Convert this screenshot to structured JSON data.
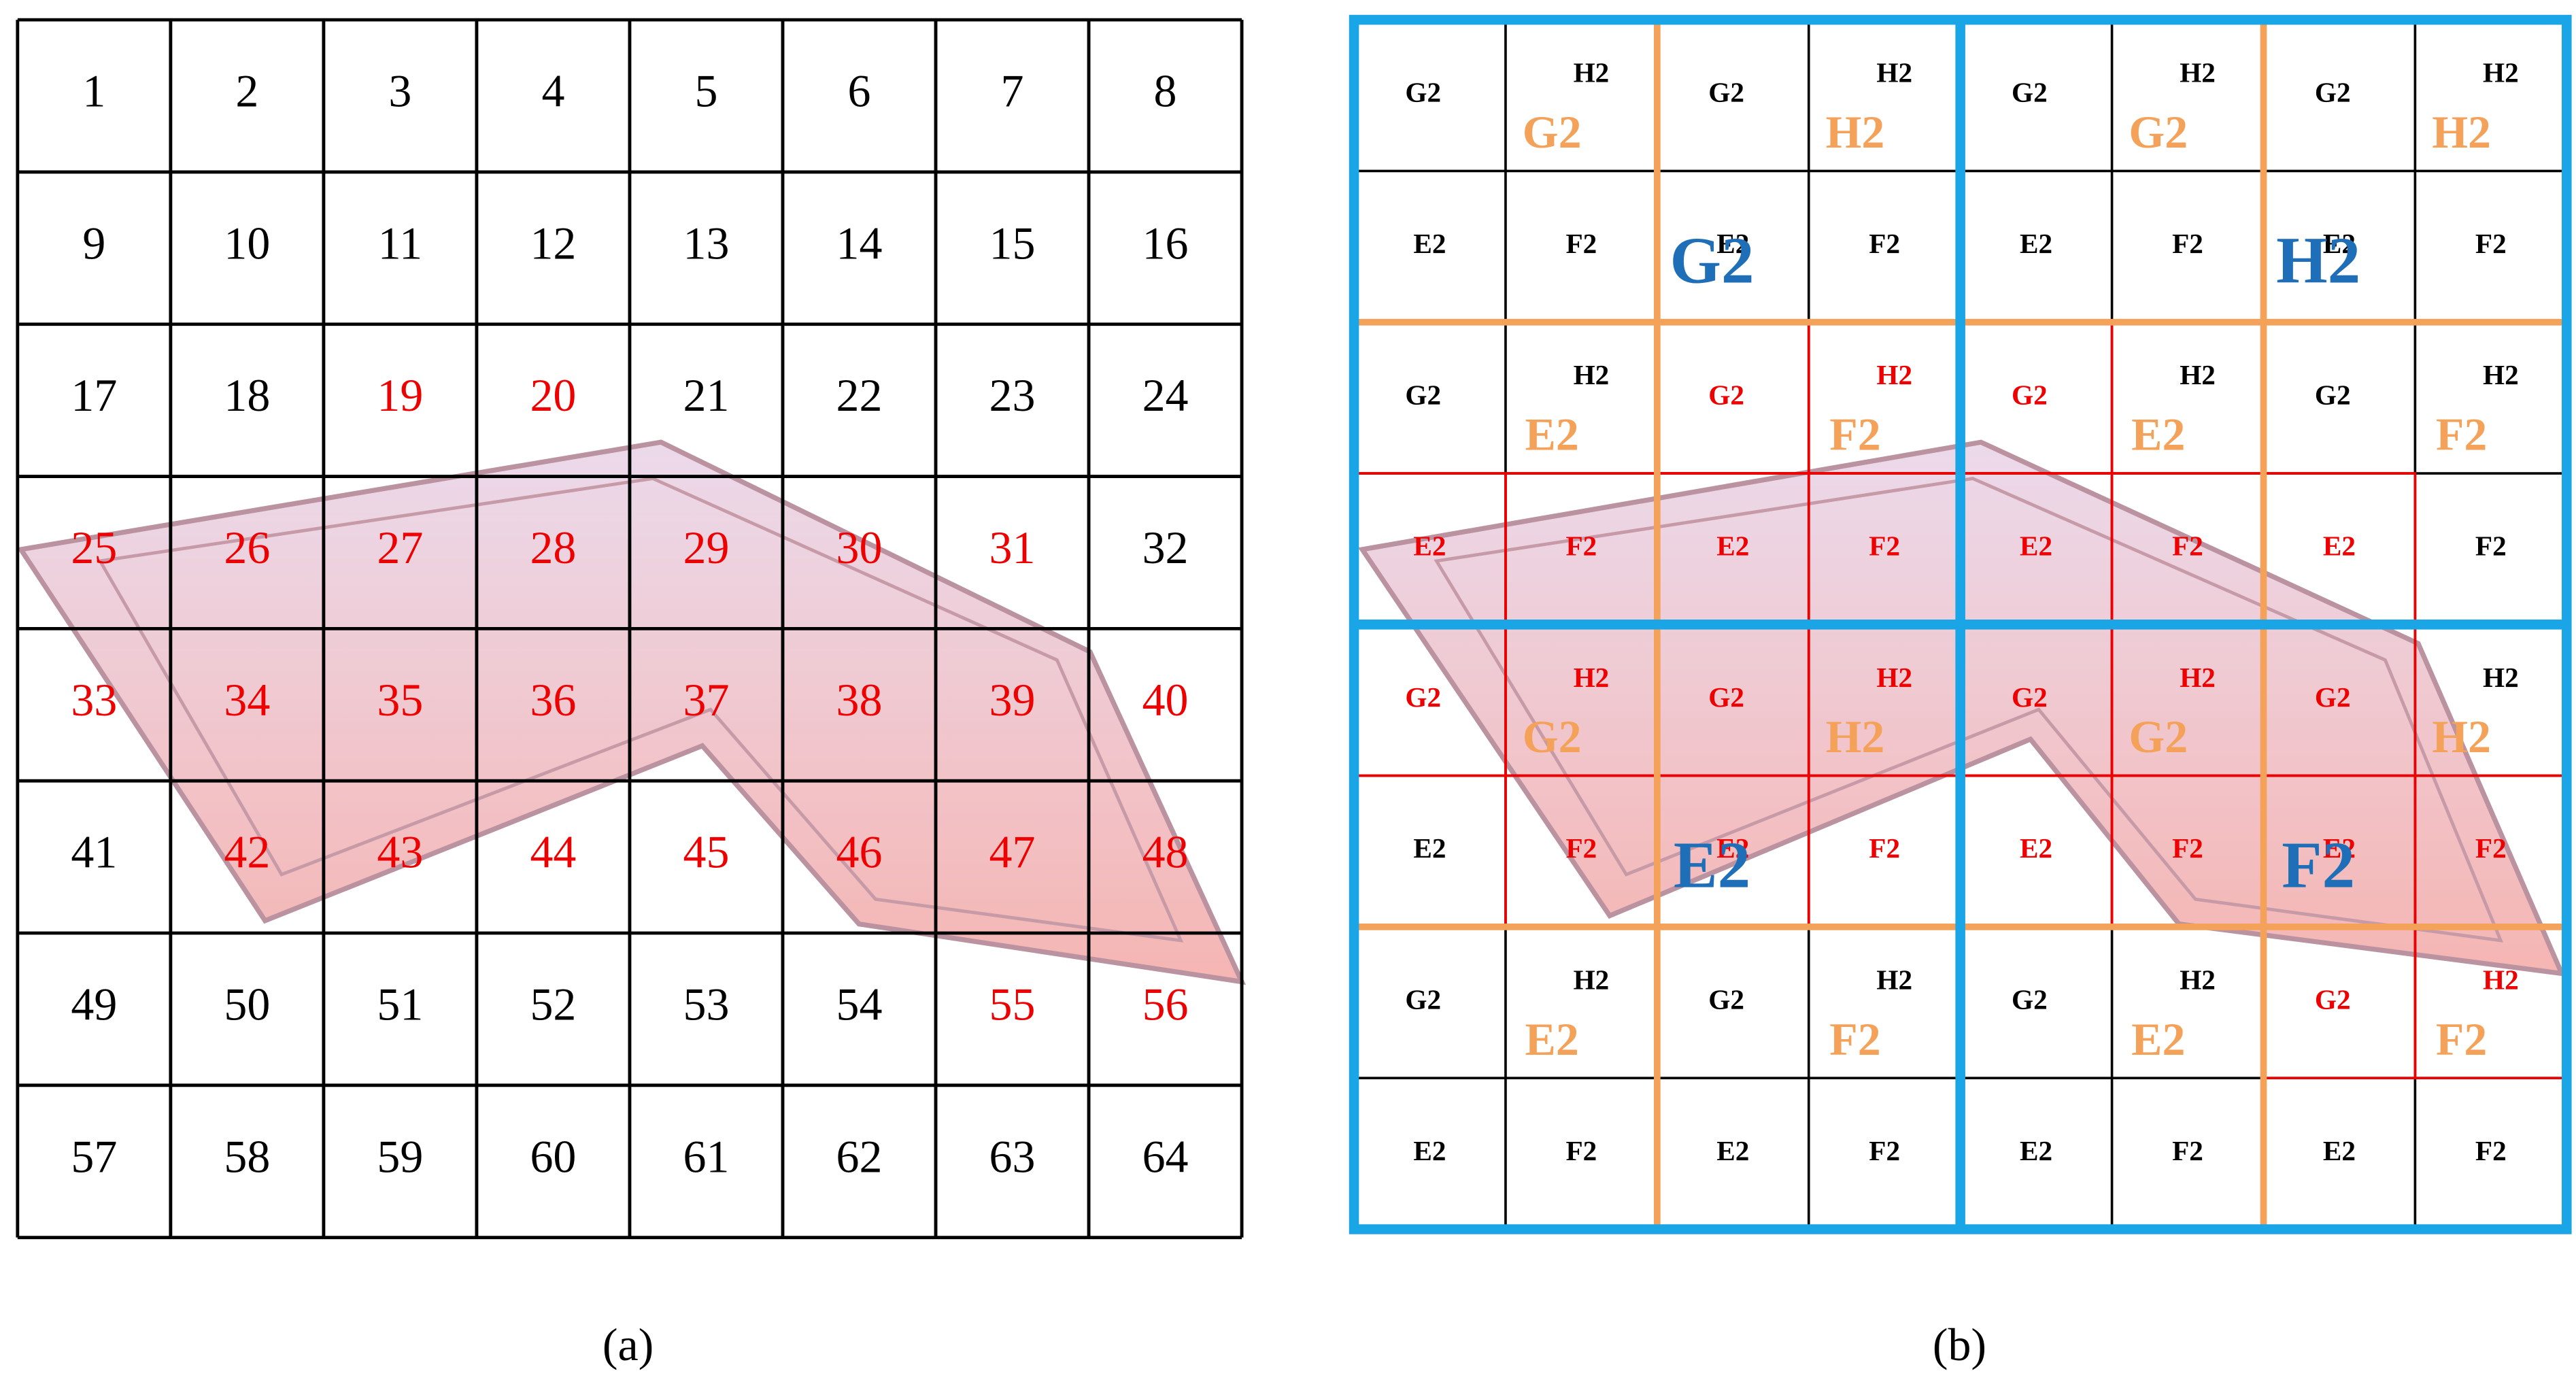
{
  "panel_a": {
    "caption": "(a)",
    "cells": [
      [
        {
          "text": "1",
          "color": "#000000"
        },
        {
          "text": "2",
          "color": "#000000"
        },
        {
          "text": "3",
          "color": "#000000"
        },
        {
          "text": "4",
          "color": "#000000"
        },
        {
          "text": "5",
          "color": "#000000"
        },
        {
          "text": "6",
          "color": "#000000"
        },
        {
          "text": "7",
          "color": "#000000"
        },
        {
          "text": "8",
          "color": "#000000"
        }
      ],
      [
        {
          "text": "9",
          "color": "#000000"
        },
        {
          "text": "10",
          "color": "#000000"
        },
        {
          "text": "11",
          "color": "#000000"
        },
        {
          "text": "12",
          "color": "#000000"
        },
        {
          "text": "13",
          "color": "#000000"
        },
        {
          "text": "14",
          "color": "#000000"
        },
        {
          "text": "15",
          "color": "#000000"
        },
        {
          "text": "16",
          "color": "#000000"
        }
      ],
      [
        {
          "text": "17",
          "color": "#000000"
        },
        {
          "text": "18",
          "color": "#000000"
        },
        {
          "text": "19",
          "color": "#ee0000"
        },
        {
          "text": "20",
          "color": "#ee0000"
        },
        {
          "text": "21",
          "color": "#000000"
        },
        {
          "text": "22",
          "color": "#000000"
        },
        {
          "text": "23",
          "color": "#000000"
        },
        {
          "text": "24",
          "color": "#000000"
        }
      ],
      [
        {
          "text": "25",
          "color": "#ee0000"
        },
        {
          "text": "26",
          "color": "#ee0000"
        },
        {
          "text": "27",
          "color": "#ee0000"
        },
        {
          "text": "28",
          "color": "#ee0000"
        },
        {
          "text": "29",
          "color": "#ee0000"
        },
        {
          "text": "30",
          "color": "#ee0000"
        },
        {
          "text": "31",
          "color": "#ee0000"
        },
        {
          "text": "32",
          "color": "#000000"
        }
      ],
      [
        {
          "text": "33",
          "color": "#ee0000"
        },
        {
          "text": "34",
          "color": "#ee0000"
        },
        {
          "text": "35",
          "color": "#ee0000"
        },
        {
          "text": "36",
          "color": "#ee0000"
        },
        {
          "text": "37",
          "color": "#ee0000"
        },
        {
          "text": "38",
          "color": "#ee0000"
        },
        {
          "text": "39",
          "color": "#ee0000"
        },
        {
          "text": "40",
          "color": "#ee0000"
        }
      ],
      [
        {
          "text": "41",
          "color": "#000000"
        },
        {
          "text": "42",
          "color": "#ee0000"
        },
        {
          "text": "43",
          "color": "#ee0000"
        },
        {
          "text": "44",
          "color": "#ee0000"
        },
        {
          "text": "45",
          "color": "#ee0000"
        },
        {
          "text": "46",
          "color": "#ee0000"
        },
        {
          "text": "47",
          "color": "#ee0000"
        },
        {
          "text": "48",
          "color": "#ee0000"
        }
      ],
      [
        {
          "text": "49",
          "color": "#000000"
        },
        {
          "text": "50",
          "color": "#000000"
        },
        {
          "text": "51",
          "color": "#000000"
        },
        {
          "text": "52",
          "color": "#000000"
        },
        {
          "text": "53",
          "color": "#000000"
        },
        {
          "text": "54",
          "color": "#000000"
        },
        {
          "text": "55",
          "color": "#ee0000"
        },
        {
          "text": "56",
          "color": "#ee0000"
        }
      ],
      [
        {
          "text": "57",
          "color": "#000000"
        },
        {
          "text": "58",
          "color": "#000000"
        },
        {
          "text": "59",
          "color": "#000000"
        },
        {
          "text": "60",
          "color": "#000000"
        },
        {
          "text": "61",
          "color": "#000000"
        },
        {
          "text": "62",
          "color": "#000000"
        },
        {
          "text": "63",
          "color": "#000000"
        },
        {
          "text": "64",
          "color": "#000000"
        }
      ]
    ]
  },
  "panel_b": {
    "caption": "(b)",
    "cells": [
      [
        {
          "text": "G2",
          "color": "#000000"
        },
        {
          "text": "H2",
          "color": "#000000"
        },
        {
          "text": "G2",
          "color": "#000000"
        },
        {
          "text": "H2",
          "color": "#000000"
        },
        {
          "text": "G2",
          "color": "#000000"
        },
        {
          "text": "H2",
          "color": "#000000"
        },
        {
          "text": "G2",
          "color": "#000000"
        },
        {
          "text": "H2",
          "color": "#000000"
        }
      ],
      [
        {
          "text": "E2",
          "color": "#000000"
        },
        {
          "text": "F2",
          "color": "#000000"
        },
        {
          "text": "E2",
          "color": "#000000"
        },
        {
          "text": "F2",
          "color": "#000000"
        },
        {
          "text": "E2",
          "color": "#000000"
        },
        {
          "text": "F2",
          "color": "#000000"
        },
        {
          "text": "E2",
          "color": "#000000"
        },
        {
          "text": "F2",
          "color": "#000000"
        }
      ],
      [
        {
          "text": "G2",
          "color": "#000000"
        },
        {
          "text": "H2",
          "color": "#000000"
        },
        {
          "text": "G2",
          "color": "#ee0000"
        },
        {
          "text": "H2",
          "color": "#ee0000"
        },
        {
          "text": "G2",
          "color": "#ee0000"
        },
        {
          "text": "H2",
          "color": "#000000"
        },
        {
          "text": "G2",
          "color": "#000000"
        },
        {
          "text": "H2",
          "color": "#000000"
        }
      ],
      [
        {
          "text": "E2",
          "color": "#ee0000"
        },
        {
          "text": "F2",
          "color": "#ee0000"
        },
        {
          "text": "E2",
          "color": "#ee0000"
        },
        {
          "text": "F2",
          "color": "#ee0000"
        },
        {
          "text": "E2",
          "color": "#ee0000"
        },
        {
          "text": "F2",
          "color": "#ee0000"
        },
        {
          "text": "E2",
          "color": "#ee0000"
        },
        {
          "text": "F2",
          "color": "#000000"
        }
      ],
      [
        {
          "text": "G2",
          "color": "#ee0000"
        },
        {
          "text": "H2",
          "color": "#ee0000"
        },
        {
          "text": "G2",
          "color": "#ee0000"
        },
        {
          "text": "H2",
          "color": "#ee0000"
        },
        {
          "text": "G2",
          "color": "#ee0000"
        },
        {
          "text": "H2",
          "color": "#ee0000"
        },
        {
          "text": "G2",
          "color": "#ee0000"
        },
        {
          "text": "H2",
          "color": "#000000"
        }
      ],
      [
        {
          "text": "E2",
          "color": "#000000"
        },
        {
          "text": "F2",
          "color": "#ee0000"
        },
        {
          "text": "E2",
          "color": "#ee0000"
        },
        {
          "text": "F2",
          "color": "#ee0000"
        },
        {
          "text": "E2",
          "color": "#ee0000"
        },
        {
          "text": "F2",
          "color": "#ee0000"
        },
        {
          "text": "E2",
          "color": "#ee0000"
        },
        {
          "text": "F2",
          "color": "#ee0000"
        }
      ],
      [
        {
          "text": "G2",
          "color": "#000000"
        },
        {
          "text": "H2",
          "color": "#000000"
        },
        {
          "text": "G2",
          "color": "#000000"
        },
        {
          "text": "H2",
          "color": "#000000"
        },
        {
          "text": "G2",
          "color": "#000000"
        },
        {
          "text": "H2",
          "color": "#000000"
        },
        {
          "text": "G2",
          "color": "#ee0000"
        },
        {
          "text": "H2",
          "color": "#ee0000"
        }
      ],
      [
        {
          "text": "E2",
          "color": "#000000"
        },
        {
          "text": "F2",
          "color": "#000000"
        },
        {
          "text": "E2",
          "color": "#000000"
        },
        {
          "text": "F2",
          "color": "#000000"
        },
        {
          "text": "E2",
          "color": "#000000"
        },
        {
          "text": "F2",
          "color": "#000000"
        },
        {
          "text": "E2",
          "color": "#000000"
        },
        {
          "text": "F2",
          "color": "#000000"
        }
      ]
    ],
    "orange_labels": [
      [
        "G2",
        "H2",
        "G2",
        "H2"
      ],
      [
        "E2",
        "F2",
        "E2",
        "F2"
      ],
      [
        "G2",
        "H2",
        "G2",
        "H2"
      ],
      [
        "E2",
        "F2",
        "E2",
        "F2"
      ]
    ],
    "blue_labels": [
      [
        "G2",
        "H2"
      ],
      [
        "E2",
        "F2"
      ]
    ]
  }
}
